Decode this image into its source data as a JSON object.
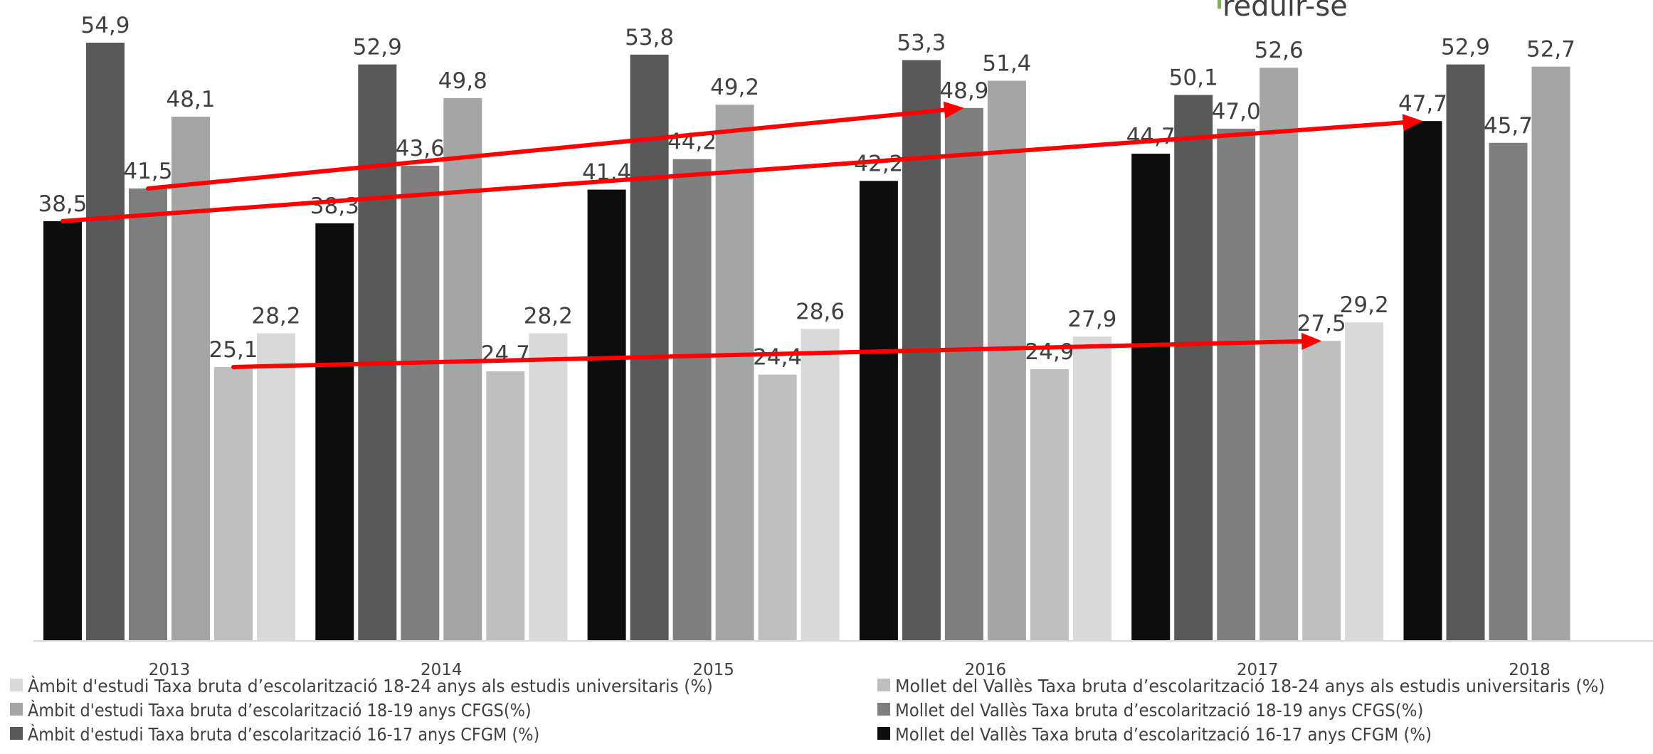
{
  "corner_text": "reduir-se",
  "chart_data": {
    "type": "bar",
    "categories": [
      "2013",
      "2014",
      "2015",
      "2016",
      "2017",
      "2018"
    ],
    "ylim": [
      0,
      60
    ],
    "grid": false,
    "legend_position": "bottom",
    "series": [
      {
        "name": "Mollet del Vallès Taxa bruta d’escolarització 16-17 anys CFGM (%)",
        "color": "#0d0d0d",
        "values": [
          38.5,
          38.3,
          41.4,
          42.2,
          44.7,
          47.7
        ],
        "labels": [
          "38,5",
          "38,3",
          "41,4",
          "42,2",
          "44,7",
          "47,7"
        ]
      },
      {
        "name": "Àmbit d'estudi Taxa bruta d’escolarització 16-17 anys CFGM (%)",
        "color": "#595959",
        "values": [
          54.9,
          52.9,
          53.8,
          53.3,
          50.1,
          52.9
        ],
        "labels": [
          "54,9",
          "52,9",
          "53,8",
          "53,3",
          "50,1",
          "52,9"
        ]
      },
      {
        "name": "Mollet del Vallès Taxa bruta d’escolarització 18-19 anys CFGS(%)",
        "color": "#7f7f7f",
        "values": [
          41.5,
          43.6,
          44.2,
          48.9,
          47.0,
          45.7
        ],
        "labels": [
          "41,5",
          "43,6",
          "44,2",
          "48,9",
          "47,0",
          "45,7"
        ]
      },
      {
        "name": "Àmbit d'estudi Taxa bruta d’escolarització 18-19 anys CFGS(%)",
        "color": "#a5a5a5",
        "values": [
          48.1,
          49.8,
          49.2,
          51.4,
          52.6,
          52.7
        ],
        "labels": [
          "48,1",
          "49,8",
          "49,2",
          "51,4",
          "52,6",
          "52,7"
        ]
      },
      {
        "name": "Mollet del Vallès Taxa bruta d’escolarització 18-24 anys als estudis universitaris (%)",
        "color": "#bfbfbf",
        "values": [
          25.1,
          24.7,
          24.4,
          24.9,
          27.5,
          null
        ],
        "labels": [
          "25,1",
          "24.7",
          "24,4",
          "24,9",
          "27,5",
          ""
        ]
      },
      {
        "name": "Àmbit d'estudi Taxa bruta d’escolarització 18-24 anys als estudis universitaris (%)",
        "color": "#d9d9d9",
        "values": [
          28.2,
          28.2,
          28.6,
          27.9,
          29.2,
          null
        ],
        "labels": [
          "28,2",
          "28,2",
          "28,6",
          "27,9",
          "29,2",
          ""
        ]
      }
    ],
    "legend": [
      {
        "label": "Àmbit d'estudi Taxa bruta d’escolarització 18-24 anys als estudis universitaris (%)",
        "color": "#d9d9d9"
      },
      {
        "label": "Mollet del Vallès Taxa bruta d’escolarització 18-24 anys als estudis universitaris (%)",
        "color": "#bfbfbf"
      },
      {
        "label": "Àmbit d'estudi Taxa bruta d’escolarització 18-19 anys CFGS(%)",
        "color": "#a5a5a5"
      },
      {
        "label": "Mollet del Vallès Taxa bruta d’escolarització 18-19 anys CFGS(%)",
        "color": "#7f7f7f"
      },
      {
        "label": "Àmbit d'estudi Taxa bruta d’escolarització 16-17 anys CFGM (%)",
        "color": "#595959"
      },
      {
        "label": "Mollet del Vallès Taxa bruta d’escolarització 16-17 anys CFGM (%)",
        "color": "#0d0d0d"
      }
    ],
    "annotations": [
      {
        "type": "trend-arrow",
        "color": "#ff0000",
        "from": {
          "x": "2013",
          "y": 41.5
        },
        "to": {
          "x": "2016",
          "y": 48.9
        }
      },
      {
        "type": "trend-arrow",
        "color": "#ff0000",
        "from": {
          "x": "2013",
          "y": 38.5
        },
        "to": {
          "x": "2018",
          "y": 47.7
        }
      },
      {
        "type": "trend-arrow",
        "color": "#ff0000",
        "from": {
          "x": "2013",
          "y": 25.1
        },
        "to": {
          "x": "2017",
          "y": 27.5
        }
      }
    ]
  }
}
